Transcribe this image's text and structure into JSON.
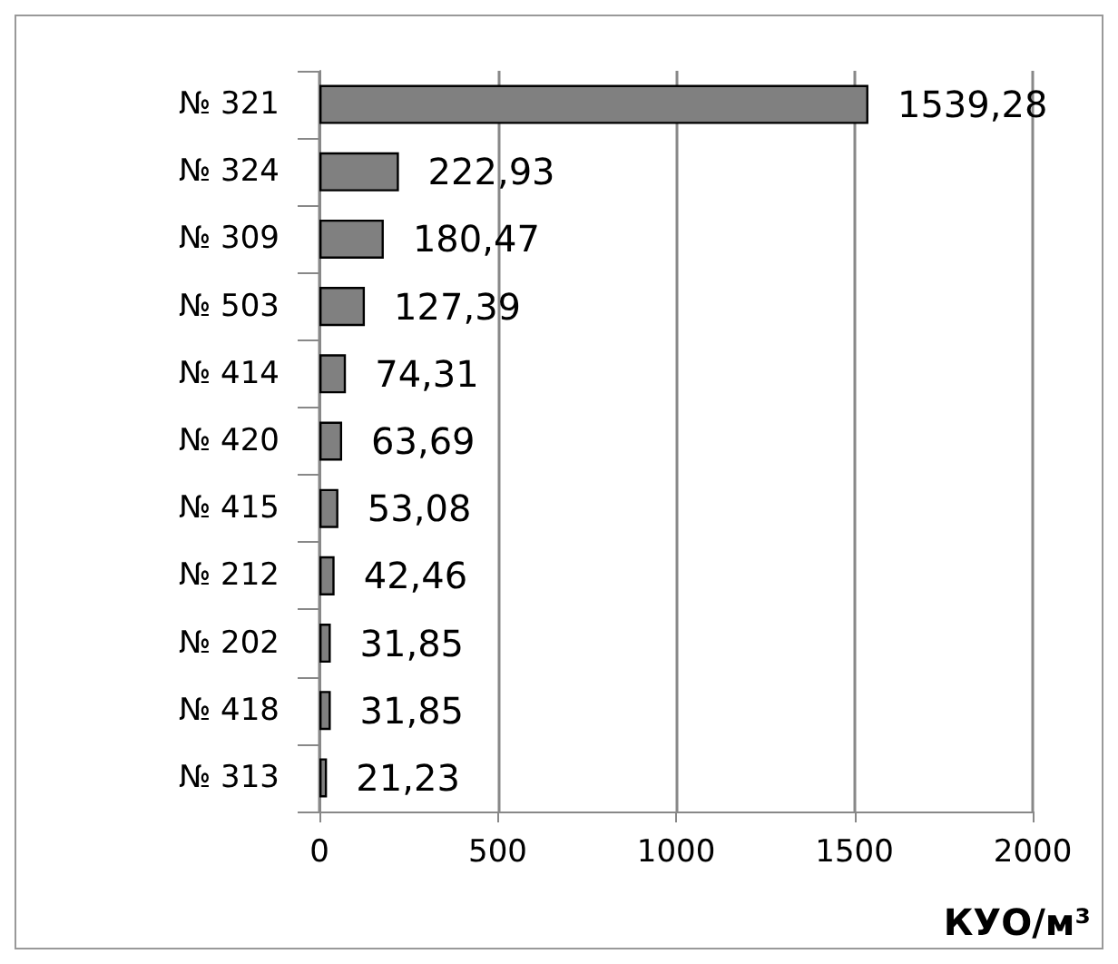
{
  "chart_data": {
    "type": "bar",
    "orientation": "horizontal",
    "categories": [
      "№ 321",
      "№ 324",
      "№ 309",
      "№ 503",
      "№ 414",
      "№ 420",
      "№ 415",
      "№ 212",
      "№ 202",
      "№ 418",
      "№ 313"
    ],
    "values": [
      1539.28,
      222.93,
      180.47,
      127.39,
      74.31,
      63.69,
      53.08,
      42.46,
      31.85,
      31.85,
      21.23
    ],
    "value_labels": [
      "1539,28",
      "222,93",
      "180,47",
      "127,39",
      "74,31",
      "63,69",
      "53,08",
      "42,46",
      "31,85",
      "31,85",
      "21,23"
    ],
    "color": "#808080",
    "xlim": [
      0,
      2000
    ],
    "xticks": [
      0,
      500,
      1000,
      1500,
      2000
    ],
    "grid": "x",
    "xlabel": "КУО/м³"
  }
}
